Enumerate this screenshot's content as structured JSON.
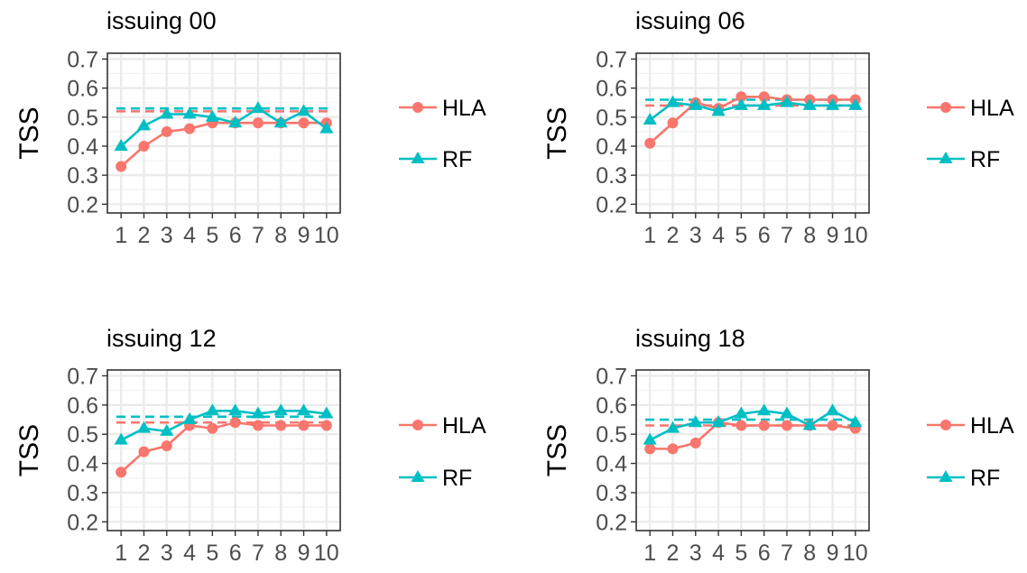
{
  "chart_data": [
    {
      "type": "line",
      "title": "issuing 00",
      "ylabel": "TSS",
      "xlabel": "",
      "x": [
        1,
        2,
        3,
        4,
        5,
        6,
        7,
        8,
        9,
        10
      ],
      "x_tick_labels": [
        "1",
        "2",
        "3",
        "4",
        "5",
        "6",
        "7",
        "8",
        "9",
        "10"
      ],
      "y_tick_labels": [
        "0.2",
        "0.3",
        "0.4",
        "0.5",
        "0.6",
        "0.7"
      ],
      "ylim": [
        0.17,
        0.72
      ],
      "grid": true,
      "legend": "right",
      "series": [
        {
          "name": "HLA",
          "color": "#F8766D",
          "marker": "circle",
          "values": [
            0.33,
            0.4,
            0.45,
            0.46,
            0.48,
            0.48,
            0.48,
            0.48,
            0.48,
            0.48
          ],
          "reference": 0.52
        },
        {
          "name": "RF",
          "color": "#00BFC4",
          "marker": "triangle",
          "values": [
            0.4,
            0.47,
            0.51,
            0.51,
            0.5,
            0.48,
            0.53,
            0.48,
            0.52,
            0.46
          ],
          "reference": 0.53
        }
      ]
    },
    {
      "type": "line",
      "title": "issuing 06",
      "ylabel": "TSS",
      "xlabel": "",
      "x": [
        1,
        2,
        3,
        4,
        5,
        6,
        7,
        8,
        9,
        10
      ],
      "x_tick_labels": [
        "1",
        "2",
        "3",
        "4",
        "5",
        "6",
        "7",
        "8",
        "9",
        "10"
      ],
      "y_tick_labels": [
        "0.2",
        "0.3",
        "0.4",
        "0.5",
        "0.6",
        "0.7"
      ],
      "ylim": [
        0.17,
        0.72
      ],
      "grid": true,
      "legend": "right",
      "series": [
        {
          "name": "HLA",
          "color": "#F8766D",
          "marker": "circle",
          "values": [
            0.41,
            0.48,
            0.55,
            0.53,
            0.57,
            0.57,
            0.56,
            0.56,
            0.56,
            0.56
          ],
          "reference": 0.54
        },
        {
          "name": "RF",
          "color": "#00BFC4",
          "marker": "triangle",
          "values": [
            0.49,
            0.55,
            0.54,
            0.52,
            0.54,
            0.54,
            0.55,
            0.54,
            0.54,
            0.54
          ],
          "reference": 0.56
        }
      ]
    },
    {
      "type": "line",
      "title": "issuing 12",
      "ylabel": "TSS",
      "xlabel": "",
      "x": [
        1,
        2,
        3,
        4,
        5,
        6,
        7,
        8,
        9,
        10
      ],
      "x_tick_labels": [
        "1",
        "2",
        "3",
        "4",
        "5",
        "6",
        "7",
        "8",
        "9",
        "10"
      ],
      "y_tick_labels": [
        "0.2",
        "0.3",
        "0.4",
        "0.5",
        "0.6",
        "0.7"
      ],
      "ylim": [
        0.17,
        0.72
      ],
      "grid": true,
      "legend": "right",
      "series": [
        {
          "name": "HLA",
          "color": "#F8766D",
          "marker": "circle",
          "values": [
            0.37,
            0.44,
            0.46,
            0.53,
            0.52,
            0.54,
            0.53,
            0.53,
            0.53,
            0.53
          ],
          "reference": 0.54
        },
        {
          "name": "RF",
          "color": "#00BFC4",
          "marker": "triangle",
          "values": [
            0.48,
            0.52,
            0.51,
            0.55,
            0.58,
            0.58,
            0.57,
            0.58,
            0.58,
            0.57
          ],
          "reference": 0.56
        }
      ]
    },
    {
      "type": "line",
      "title": "issuing 18",
      "ylabel": "TSS",
      "xlabel": "",
      "x": [
        1,
        2,
        3,
        4,
        5,
        6,
        7,
        8,
        9,
        10
      ],
      "x_tick_labels": [
        "1",
        "2",
        "3",
        "4",
        "5",
        "6",
        "7",
        "8",
        "9",
        "10"
      ],
      "y_tick_labels": [
        "0.2",
        "0.3",
        "0.4",
        "0.5",
        "0.6",
        "0.7"
      ],
      "ylim": [
        0.17,
        0.72
      ],
      "grid": true,
      "legend": "right",
      "series": [
        {
          "name": "HLA",
          "color": "#F8766D",
          "marker": "circle",
          "values": [
            0.45,
            0.45,
            0.47,
            0.54,
            0.53,
            0.53,
            0.53,
            0.53,
            0.53,
            0.52
          ],
          "reference": 0.53
        },
        {
          "name": "RF",
          "color": "#00BFC4",
          "marker": "triangle",
          "values": [
            0.48,
            0.52,
            0.54,
            0.54,
            0.57,
            0.58,
            0.57,
            0.53,
            0.58,
            0.54
          ],
          "reference": 0.55
        }
      ]
    }
  ]
}
